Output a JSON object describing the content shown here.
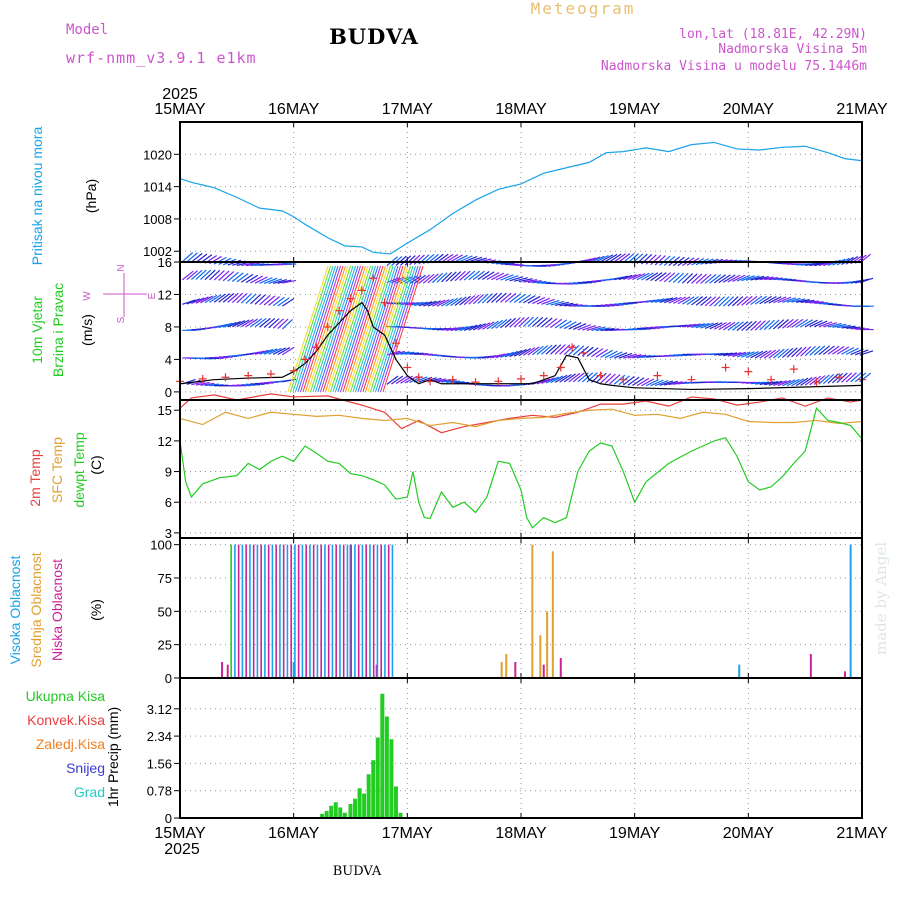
{
  "header": {
    "model_label": "Model",
    "model_name": "wrf-nmm_v3.9.1 e1km",
    "station": "BUDVA",
    "chart_title": "Meteogram",
    "coords": "lon,lat (18.81E, 42.29N)",
    "elevation": "Nadmorska Visina 5m",
    "model_elevation": "Nadmorska Visina u modelu 75.1446m",
    "footer_station": "BUDVA",
    "watermark": "made by Angel"
  },
  "colors": {
    "pressure": "#1aa3e8",
    "temp2m": "#e8403a",
    "sfc": "#e0a030",
    "dew": "#22cc22",
    "wind_line": "#000000",
    "gust": "#e83030",
    "high_cloud": "#1aa3e8",
    "mid_cloud": "#e0a030",
    "low_cloud": "#cc2299",
    "total_precip": "#22cc22",
    "conv_precip": "#e84040",
    "ice_precip": "#f08020",
    "snow": "#3a3ad8",
    "hail": "#22ccc0",
    "model_label": "#cc55cc",
    "title": "#e8c070"
  },
  "chart_data": {
    "type": "line",
    "x_axis": {
      "year": "2025",
      "ticks": [
        "15MAY",
        "16MAY",
        "17MAY",
        "18MAY",
        "19MAY",
        "20MAY",
        "21MAY"
      ],
      "xlim": [
        0,
        6
      ]
    },
    "panels": [
      {
        "id": "pressure",
        "ylabel_lines": [
          "Pritisak na nivou mora"
        ],
        "unit": "(hPa)",
        "ylim": [
          1000,
          1026
        ],
        "yticks": [
          "1002",
          "1008",
          "1014",
          "1020"
        ],
        "series": [
          {
            "x": [
              0,
              0.1,
              0.2,
              0.3,
              0.5,
              0.7,
              0.9,
              1.0,
              1.1,
              1.3,
              1.45,
              1.6,
              1.7,
              1.85,
              2.0,
              2.2,
              2.4,
              2.6,
              2.8,
              3.0,
              3.2,
              3.4,
              3.6,
              3.75,
              3.9,
              4.1,
              4.3,
              4.5,
              4.7,
              4.9,
              5.1,
              5.3,
              5.5,
              5.7,
              5.85,
              6.0
            ],
            "y": [
              1015.5,
              1014.8,
              1014.3,
              1013.8,
              1012,
              1010,
              1009.5,
              1008.4,
              1007,
              1004.5,
              1003,
              1002.8,
              1001.8,
              1001.5,
              1003.5,
              1006,
              1009,
              1011.5,
              1013.5,
              1014.5,
              1016.5,
              1017.5,
              1018.5,
              1020.3,
              1020.5,
              1021.2,
              1020.5,
              1021.8,
              1022.2,
              1021,
              1020.8,
              1021.3,
              1021.5,
              1020.3,
              1019.2,
              1018.8
            ]
          }
        ]
      },
      {
        "id": "wind",
        "ylabel_lines": [
          "10m Vjetar",
          "Brzina i Pravac"
        ],
        "unit": "(m/s)",
        "direction_legend": [
          "N",
          "E",
          "S",
          "W"
        ],
        "ylim": [
          -1,
          16
        ],
        "yticks": [
          "0",
          "4",
          "8",
          "12",
          "16"
        ],
        "series": [
          {
            "x": [
              0,
              0.3,
              0.6,
              0.9,
              1.0,
              1.1,
              1.2,
              1.3,
              1.4,
              1.5,
              1.6,
              1.65,
              1.7,
              1.8,
              1.9,
              2.0,
              2.1,
              2.2,
              2.3,
              2.5,
              2.7,
              2.9,
              3.1,
              3.3,
              3.4,
              3.5,
              3.6,
              3.7,
              3.8,
              4.0,
              4.5,
              5.0,
              5.5,
              6.0
            ],
            "y": [
              1,
              1.5,
              1.7,
              1.8,
              2.5,
              3.5,
              5,
              7,
              8.5,
              10,
              11,
              10,
              8,
              7,
              4,
              2,
              1,
              1.5,
              1,
              1,
              1,
              1,
              1,
              2,
              4.5,
              4.2,
              1.5,
              1,
              0.8,
              0.5,
              0.3,
              0.4,
              0.6,
              0.8
            ]
          },
          {
            "x": [
              0,
              0.2,
              0.4,
              0.6,
              0.8,
              1.0,
              1.1,
              1.2,
              1.3,
              1.4,
              1.5,
              1.6,
              1.7,
              1.8,
              1.9,
              2.0,
              2.1,
              2.2,
              2.4,
              2.6,
              2.8,
              3.0,
              3.2,
              3.35,
              3.45,
              3.55,
              3.7,
              3.9,
              4.2,
              4.5,
              4.8,
              5.0,
              5.2,
              5.4,
              5.6,
              5.8,
              6.0
            ],
            "y": [
              1.3,
              1.6,
              1.8,
              2,
              2.2,
              2.6,
              4,
              5.5,
              8,
              10,
              11.5,
              12.5,
              14,
              11,
              6,
              3,
              1.8,
              1.3,
              1.5,
              1.2,
              1.3,
              1.6,
              2,
              3,
              5.5,
              4.8,
              2,
              1.5,
              2,
              1.5,
              3,
              2.5,
              1.5,
              2.8,
              1.2,
              1.8,
              1.5
            ]
          }
        ]
      },
      {
        "id": "temperature",
        "ylabel_lines": [
          "2m Temp",
          "SFC Temp",
          "dewpt Temp"
        ],
        "unit": "(C)",
        "ylim": [
          2.5,
          16
        ],
        "yticks": [
          "3",
          "6",
          "9",
          "12",
          "15"
        ],
        "series": [
          {
            "name": "2m Temp",
            "x": [
              0,
              0.1,
              0.3,
              0.5,
              0.8,
              1.0,
              1.3,
              1.6,
              1.8,
              1.95,
              2.1,
              2.3,
              2.5,
              2.7,
              2.9,
              3.1,
              3.3,
              3.5,
              3.7,
              3.9,
              4.1,
              4.3,
              4.5,
              4.7,
              4.9,
              5.1,
              5.3,
              5.5,
              5.7,
              5.9,
              6.0
            ],
            "y": [
              15.2,
              16.2,
              16.5,
              16,
              16.6,
              16.3,
              16.4,
              15.5,
              14.8,
              13.2,
              14,
              12.8,
              13.4,
              13.8,
              14.2,
              14.5,
              14.3,
              14.8,
              15.6,
              15.6,
              15.9,
              15.4,
              16.3,
              16.1,
              15.5,
              15.8,
              16.2,
              15.4,
              16.2,
              15.8,
              16
            ]
          },
          {
            "name": "SFC Temp",
            "x": [
              0,
              0.2,
              0.4,
              0.6,
              0.8,
              1.0,
              1.2,
              1.4,
              1.6,
              1.8,
              2.0,
              2.2,
              2.4,
              2.6,
              2.8,
              3.0,
              3.2,
              3.4,
              3.6,
              3.8,
              4.0,
              4.2,
              4.4,
              4.6,
              4.8,
              5.0,
              5.2,
              5.4,
              5.6,
              5.8,
              6.0
            ],
            "y": [
              14.2,
              13.6,
              14.8,
              14.2,
              14.8,
              14.6,
              14.4,
              14.5,
              14.2,
              14,
              14.2,
              13.5,
              13.8,
              13.4,
              14,
              14.2,
              14.3,
              14.7,
              15,
              15.1,
              14.5,
              14.6,
              14.2,
              14.8,
              14.6,
              13.9,
              13.8,
              13.8,
              14,
              13.7,
              13.9
            ]
          },
          {
            "name": "dewpt Temp",
            "x": [
              0,
              0.05,
              0.1,
              0.2,
              0.35,
              0.5,
              0.6,
              0.7,
              0.8,
              0.9,
              1.0,
              1.1,
              1.2,
              1.3,
              1.4,
              1.5,
              1.6,
              1.7,
              1.8,
              1.9,
              2.0,
              2.05,
              2.1,
              2.15,
              2.2,
              2.3,
              2.4,
              2.5,
              2.6,
              2.7,
              2.8,
              2.9,
              3.0,
              3.05,
              3.1,
              3.2,
              3.3,
              3.4,
              3.5,
              3.6,
              3.7,
              3.8,
              3.9,
              4.0,
              4.1,
              4.3,
              4.5,
              4.6,
              4.7,
              4.8,
              4.9,
              5.0,
              5.1,
              5.2,
              5.3,
              5.4,
              5.5,
              5.6,
              5.7,
              5.8,
              5.9,
              6.0
            ],
            "y": [
              12,
              8,
              6.5,
              7.8,
              8.4,
              8.6,
              9.8,
              9.2,
              10,
              10.5,
              10,
              11.5,
              10.8,
              10,
              9.8,
              8.8,
              8.6,
              8.2,
              7.7,
              6.3,
              6.5,
              9,
              6,
              4.5,
              4.4,
              7,
              5.5,
              6,
              5,
              6.5,
              10,
              9.8,
              7.2,
              4.5,
              3.5,
              4.5,
              4,
              4.5,
              9,
              11,
              11.8,
              11.5,
              9,
              6,
              8,
              9.8,
              11,
              11.5,
              12,
              12.3,
              10.5,
              8,
              7.2,
              7.5,
              8.5,
              9.8,
              11,
              15.2,
              14,
              13.8,
              13.5,
              12.2
            ]
          }
        ]
      },
      {
        "id": "clouds",
        "ylabel_lines": [
          "Visoka Oblacnost",
          "Srednja Oblacnost",
          "Niska Oblacnost"
        ],
        "unit": "(%)",
        "ylim": [
          0,
          105
        ],
        "yticks": [
          "0",
          "25",
          "50",
          "75",
          "100"
        ],
        "series": [
          {
            "name": "Visoka Oblacnost",
            "x": [
              1.0,
              1.5,
              4.92,
              5.9
            ],
            "y": [
              12,
              100,
              10,
              100
            ]
          },
          {
            "name": "Srednja Oblacnost",
            "x": [
              2.83,
              2.87,
              3.1,
              3.17,
              3.23,
              3.28
            ],
            "y": [
              12,
              18,
              100,
              32,
              50,
              95
            ]
          },
          {
            "name": "Niska Oblacnost",
            "x": [
              0.37,
              0.42,
              1.73,
              2.95,
              3.2,
              3.35,
              5.55,
              5.85
            ],
            "y": [
              12,
              10,
              10,
              12,
              10,
              15,
              18,
              5
            ]
          }
        ]
      },
      {
        "id": "precip",
        "ylabel_lines": [
          "1hr Precip (mm)"
        ],
        "legend": [
          "Ukupna Kisa",
          "Konvek.Kisa",
          "Zaledj.Kisa",
          "Snijeg",
          "Grad"
        ],
        "ylim": [
          0,
          4
        ],
        "yticks": [
          "0",
          "0.78",
          "1.56",
          "2.34",
          "3.12"
        ],
        "series": [
          {
            "name": "Ukupna Kisa",
            "x": [
              1.25,
              1.29,
              1.33,
              1.37,
              1.41,
              1.45,
              1.5,
              1.54,
              1.58,
              1.62,
              1.66,
              1.7,
              1.74,
              1.78,
              1.82,
              1.86,
              1.9,
              1.94
            ],
            "y": [
              0.12,
              0.2,
              0.35,
              0.45,
              0.3,
              0.15,
              0.4,
              0.55,
              0.85,
              0.7,
              1.25,
              1.65,
              2.3,
              3.55,
              2.9,
              2.25,
              0.9,
              0.15
            ]
          }
        ]
      }
    ]
  }
}
